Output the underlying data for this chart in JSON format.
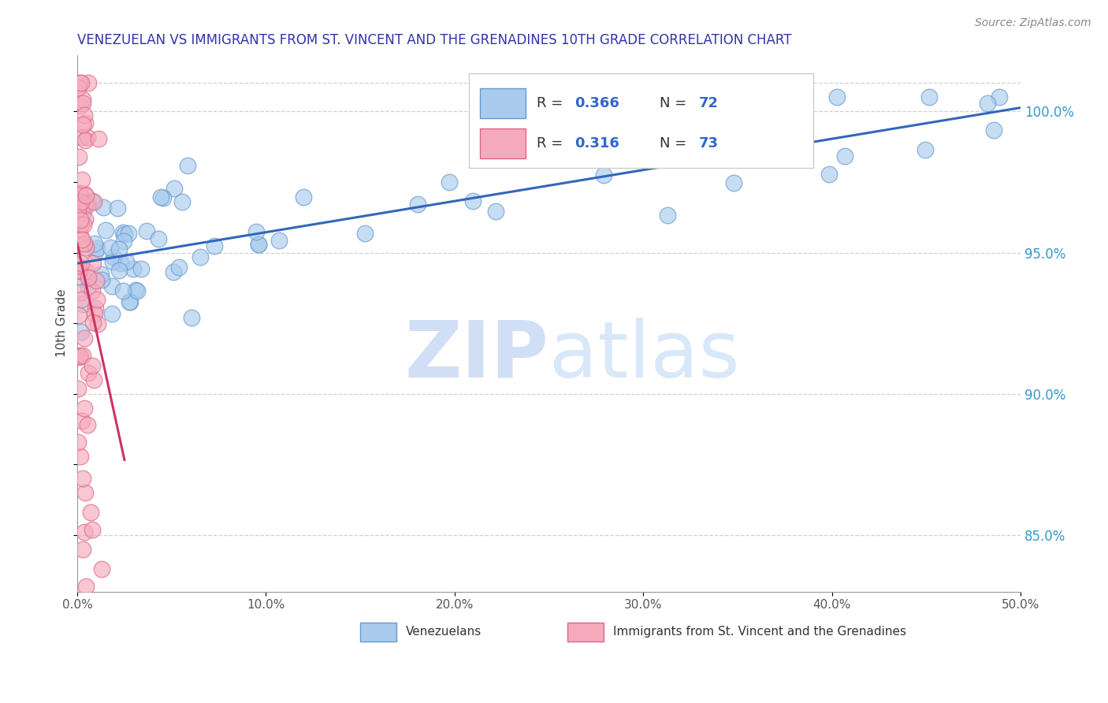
{
  "title": "VENEZUELAN VS IMMIGRANTS FROM ST. VINCENT AND THE GRENADINES 10TH GRADE CORRELATION CHART",
  "source_text": "Source: ZipAtlas.com",
  "ylabel": "10th Grade",
  "xlim": [
    0.0,
    50.0
  ],
  "ylim": [
    83.0,
    102.0
  ],
  "xtick_labels": [
    "0.0%",
    "10.0%",
    "20.0%",
    "30.0%",
    "40.0%",
    "50.0%"
  ],
  "ytick_labels_right": [
    "85.0%",
    "90.0%",
    "95.0%",
    "100.0%"
  ],
  "yticks_right": [
    85.0,
    90.0,
    95.0,
    100.0
  ],
  "legend_blue_r": "0.366",
  "legend_blue_n": "72",
  "legend_pink_r": "0.316",
  "legend_pink_n": "73",
  "blue_color": "#A8CBEE",
  "blue_edge_color": "#6699CC",
  "pink_color": "#F5AABB",
  "pink_edge_color": "#DD6688",
  "blue_line_color": "#3366BB",
  "pink_line_color": "#CC3366",
  "watermark_color": "#D0DFF5",
  "watermark_text": "ZIPatlas",
  "title_color": "#3333AA",
  "grid_color": "#CCCCCC",
  "background_color": "#ffffff",
  "legend_text_color": "#333333",
  "legend_num_color": "#3366CC",
  "source_color": "#888888",
  "right_axis_color": "#3399CC"
}
